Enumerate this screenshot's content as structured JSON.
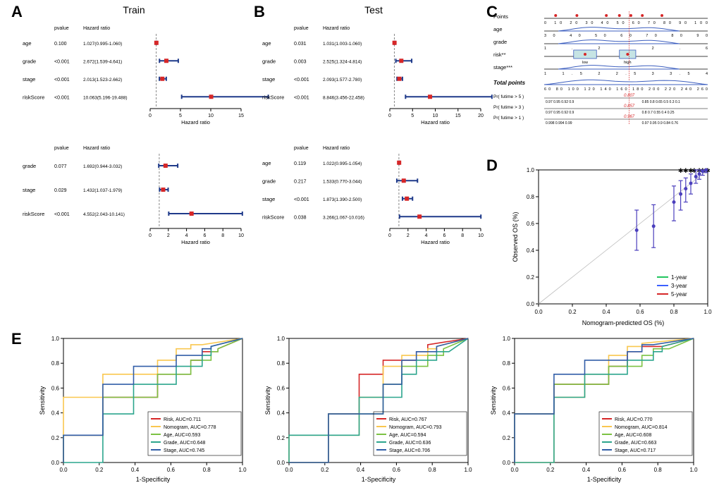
{
  "colors": {
    "marker": "#d62728",
    "whisker": "#1f3a8a",
    "axis": "#000000",
    "ref_line": "#888888",
    "grid": "#e0e0e0",
    "nom_blue": "#3d5fbf",
    "nom_red": "#d62728",
    "nom_box": "#c6e4e4",
    "calib_diag": "#bfbfbf",
    "calib_pt": "#4b3fbd",
    "roc_risk": "#d62728",
    "roc_nom": "#f9c74f",
    "roc_age": "#7cc243",
    "roc_grade": "#2ca58d",
    "roc_stage": "#325ea8",
    "legend_1y": "#22c55e",
    "legend_3y": "#3b5fff",
    "legend_5y": "#d62728"
  },
  "panelA": {
    "label": "A",
    "title": "Train",
    "upper": {
      "header_pvalue": "pvalue",
      "header_hr": "Hazard ratio",
      "xlabel": "Hazard ratio",
      "xmin": 0,
      "xmax": 15,
      "ticks": [
        0,
        5,
        10,
        15
      ],
      "ref": 1,
      "rows": [
        {
          "name": "age",
          "pvalue": "0.100",
          "hr_text": "1.027(0.995-1.060)",
          "hr": 1.027,
          "lo": 0.995,
          "hi": 1.06
        },
        {
          "name": "grade",
          "pvalue": "<0.001",
          "hr_text": "2.672(1.539-4.641)",
          "hr": 2.672,
          "lo": 1.539,
          "hi": 4.641
        },
        {
          "name": "stage",
          "pvalue": "<0.001",
          "hr_text": "2.013(1.523-2.662)",
          "hr": 2.013,
          "lo": 1.523,
          "hi": 2.662
        },
        {
          "name": "riskScore",
          "pvalue": "<0.001",
          "hr_text": "10.063(5.196-19.488)",
          "hr": 10.063,
          "lo": 5.196,
          "hi": 19.488
        }
      ]
    },
    "lower": {
      "header_pvalue": "pvalue",
      "header_hr": "Hazard ratio",
      "xlabel": "Hazard ratio",
      "xmin": 0,
      "xmax": 10,
      "ticks": [
        0,
        2,
        4,
        6,
        8,
        10
      ],
      "ref": 1,
      "rows": [
        {
          "name": "grade",
          "pvalue": "0.077",
          "hr_text": "1.692(0.944-3.032)",
          "hr": 1.692,
          "lo": 0.944,
          "hi": 3.032
        },
        {
          "name": "stage",
          "pvalue": "0.029",
          "hr_text": "1.432(1.037-1.979)",
          "hr": 1.432,
          "lo": 1.037,
          "hi": 1.979
        },
        {
          "name": "riskScore",
          "pvalue": "<0.001",
          "hr_text": "4.552(2.043-10.141)",
          "hr": 4.552,
          "lo": 2.043,
          "hi": 10.141
        }
      ]
    }
  },
  "panelB": {
    "label": "B",
    "title": "Test",
    "upper": {
      "header_pvalue": "pvalue",
      "header_hr": "Hazard ratio",
      "xlabel": "Hazard ratio",
      "xmin": 0,
      "xmax": 20,
      "ticks": [
        0,
        5,
        10,
        15,
        20
      ],
      "ref": 1,
      "rows": [
        {
          "name": "age",
          "pvalue": "0.031",
          "hr_text": "1.031(1.003-1.060)",
          "hr": 1.031,
          "lo": 1.003,
          "hi": 1.06
        },
        {
          "name": "grade",
          "pvalue": "0.003",
          "hr_text": "2.525(1.324-4.814)",
          "hr": 2.525,
          "lo": 1.324,
          "hi": 4.814
        },
        {
          "name": "stage",
          "pvalue": "<0.001",
          "hr_text": "2.093(1.577-2.780)",
          "hr": 2.093,
          "lo": 1.577,
          "hi": 2.78
        },
        {
          "name": "riskScore",
          "pvalue": "<0.001",
          "hr_text": "8.846(3.456-22.458)",
          "hr": 8.846,
          "lo": 3.456,
          "hi": 22.458
        }
      ]
    },
    "lower": {
      "header_pvalue": "pvalue",
      "header_hr": "Hazard ratio",
      "xlabel": "Hazard ratio",
      "xmin": 0,
      "xmax": 10,
      "ticks": [
        0,
        2,
        4,
        6,
        8,
        10
      ],
      "ref": 1,
      "rows": [
        {
          "name": "age",
          "pvalue": "0.119",
          "hr_text": "1.022(0.995-1.054)",
          "hr": 1.022,
          "lo": 0.995,
          "hi": 1.054
        },
        {
          "name": "grade",
          "pvalue": "0.217",
          "hr_text": "1.533(0.770-3.044)",
          "hr": 1.533,
          "lo": 0.77,
          "hi": 3.044
        },
        {
          "name": "stage",
          "pvalue": "<0.001",
          "hr_text": "1.873(1.390-2.500)",
          "hr": 1.873,
          "lo": 1.39,
          "hi": 2.5
        },
        {
          "name": "riskScore",
          "pvalue": "0.038",
          "hr_text": "3.266(1.067-10.016)",
          "hr": 3.266,
          "lo": 1.067,
          "hi": 10.016
        }
      ]
    }
  },
  "panelC": {
    "label": "C",
    "rows": [
      {
        "label": "Points",
        "ticks_text": "0 10 20 30 40 50 60 70 80 90 100",
        "markers": [
          7,
          20,
          38,
          46,
          53,
          60,
          72
        ]
      },
      {
        "label": "age",
        "ticks_text": "30 40 50 60 70 80 90",
        "density": true
      },
      {
        "label": "grade",
        "ticks_text": "1.2  2.6",
        "density": true
      },
      {
        "label": "risk**",
        "boxes": [
          {
            "label": "low",
            "x": 0.18,
            "w": 0.14
          },
          {
            "label": "high",
            "x": 0.46,
            "w": 0.1
          }
        ]
      },
      {
        "label": "stage***",
        "ticks_text": "1  1.5  2  2.5  3  3.5  4",
        "density": true
      }
    ],
    "total_label": "Total points",
    "total_ticks": "60 80 100 120 140 160 180 200 220 240 260",
    "prob_rows": [
      {
        "label": "Pr( futime > 5 )",
        "ticks": "0.97 0.95 0.92 0.9",
        "val": "0.807",
        "val_tail": "0.85 0.8 0.65 0.5 0.3 0.1"
      },
      {
        "label": "Pr( futime > 3 )",
        "ticks": "0.97 0.95 0.92 0.9",
        "val": "0.857",
        "val_tail": "0.8 0.7 0.55 0.4 0.25"
      },
      {
        "label": "Pr( futime > 1 )",
        "ticks": "0.998 0.994 0.99",
        "val": "0.967",
        "val_tail": "0.97 0.95 0.9 0.84 0.76"
      }
    ]
  },
  "panelD": {
    "label": "D",
    "xlabel": "Nomogram-predicted OS (%)",
    "ylabel": "Observed OS (%)",
    "xlim": [
      0,
      1
    ],
    "ylim": [
      0,
      1
    ],
    "ticks": [
      0.0,
      0.2,
      0.4,
      0.6,
      0.8,
      1.0
    ],
    "legend": [
      "1-year",
      "3-year",
      "5-year"
    ],
    "points": [
      {
        "x": 0.58,
        "y": 0.55,
        "lo": 0.4,
        "hi": 0.7
      },
      {
        "x": 0.68,
        "y": 0.58,
        "lo": 0.42,
        "hi": 0.74
      },
      {
        "x": 0.8,
        "y": 0.76,
        "lo": 0.62,
        "hi": 0.88
      },
      {
        "x": 0.84,
        "y": 0.82,
        "lo": 0.7,
        "hi": 0.92
      },
      {
        "x": 0.87,
        "y": 0.86,
        "lo": 0.76,
        "hi": 0.94
      },
      {
        "x": 0.9,
        "y": 0.9,
        "lo": 0.82,
        "hi": 0.97
      },
      {
        "x": 0.93,
        "y": 0.95,
        "lo": 0.9,
        "hi": 1.0
      },
      {
        "x": 0.95,
        "y": 0.97,
        "lo": 0.93,
        "hi": 1.0
      },
      {
        "x": 0.97,
        "y": 0.99,
        "lo": 0.96,
        "hi": 1.0
      },
      {
        "x": 0.99,
        "y": 1.0,
        "lo": 0.98,
        "hi": 1.0
      }
    ],
    "star_x": [
      0.84,
      0.87,
      0.9,
      0.92,
      0.95,
      0.97,
      0.99,
      1.0
    ]
  },
  "panelE": {
    "label": "E",
    "xlabel": "1-Specificity",
    "ylabel": "Sensitivity",
    "xlim": [
      0,
      1
    ],
    "ylim": [
      0,
      1
    ],
    "ticks": [
      0.0,
      0.2,
      0.4,
      0.6,
      0.8,
      1.0
    ],
    "plots": [
      {
        "legend": [
          {
            "label": "Risk, AUC=0.711",
            "color": "roc_risk"
          },
          {
            "label": "Nomogram, AUC=0.778",
            "color": "roc_nom"
          },
          {
            "label": "Age, AUC=0.593",
            "color": "roc_age"
          },
          {
            "label": "Grade, AUC=0.648",
            "color": "roc_grade"
          },
          {
            "label": "Stage, AUC=0.745",
            "color": "roc_stage"
          }
        ]
      },
      {
        "legend": [
          {
            "label": "Risk, AUC=0.767",
            "color": "roc_risk"
          },
          {
            "label": "Nomogram, AUC=0.793",
            "color": "roc_nom"
          },
          {
            "label": "Age, AUC=0.594",
            "color": "roc_age"
          },
          {
            "label": "Grade, AUC=0.636",
            "color": "roc_grade"
          },
          {
            "label": "Stage, AUC=0.706",
            "color": "roc_stage"
          }
        ]
      },
      {
        "legend": [
          {
            "label": "Risk, AUC=0.770",
            "color": "roc_risk"
          },
          {
            "label": "Nomogram, AUC=0.814",
            "color": "roc_nom"
          },
          {
            "label": "Age, AUC=0.608",
            "color": "roc_age"
          },
          {
            "label": "Grade, AUC=0.663",
            "color": "roc_grade"
          },
          {
            "label": "Stage, AUC=0.717",
            "color": "roc_stage"
          }
        ]
      }
    ]
  }
}
